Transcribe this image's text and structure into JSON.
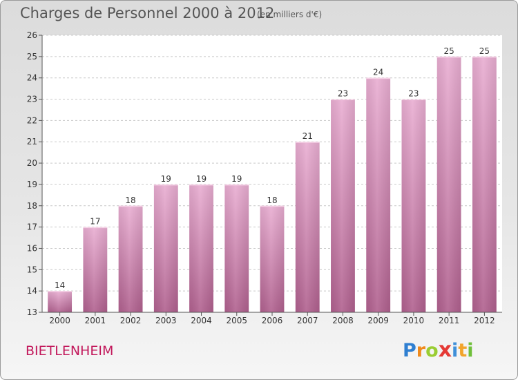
{
  "header": {
    "title": "Charges de Personnel 2000 à 2012",
    "unit": "(en milliers d'€)"
  },
  "footer": {
    "town": "BIETLENHEIM",
    "logo_letters": [
      "P",
      "r",
      "o",
      "x",
      "i",
      "t",
      "i"
    ],
    "logo_colors": [
      "#2f7fd1",
      "#f08a1c",
      "#9acd32",
      "#e53935",
      "#3f8fd8",
      "#f2a42b",
      "#6fbf3a"
    ]
  },
  "chart_data": {
    "type": "bar",
    "categories": [
      "2000",
      "2001",
      "2002",
      "2003",
      "2004",
      "2005",
      "2006",
      "2007",
      "2008",
      "2009",
      "2010",
      "2011",
      "2012"
    ],
    "values": [
      14,
      17,
      18,
      19,
      19,
      19,
      18,
      21,
      23,
      24,
      23,
      25,
      25
    ],
    "data_labels": [
      "14",
      "17",
      "18",
      "19",
      "19",
      "19",
      "18",
      "21",
      "23",
      "24",
      "23",
      "25",
      "25"
    ],
    "yticks": [
      "13",
      "14",
      "15",
      "16",
      "17",
      "18",
      "19",
      "20",
      "21",
      "22",
      "23",
      "24",
      "25",
      "26"
    ],
    "ylim": [
      13,
      26
    ],
    "grid": true,
    "bar_color": "#d58fb8"
  }
}
